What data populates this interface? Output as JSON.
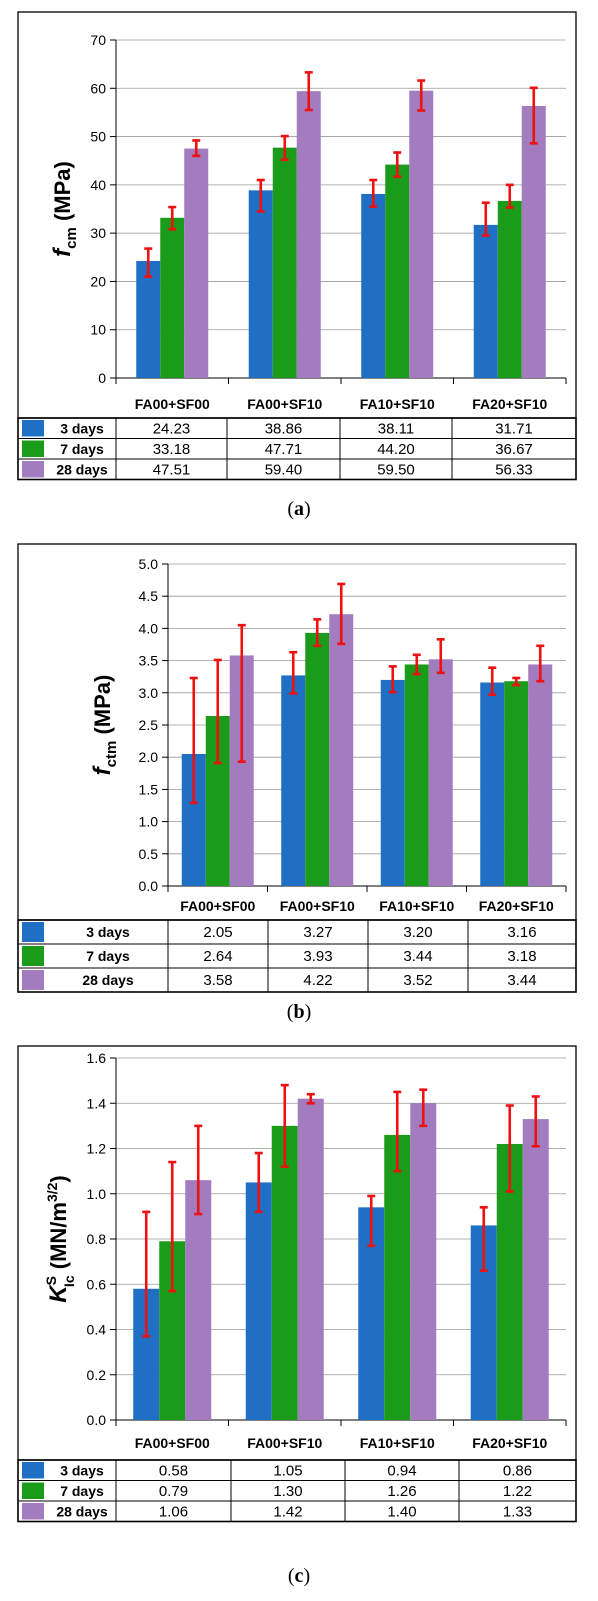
{
  "chart_data": [
    {
      "type": "bar",
      "panel_label": "a",
      "ylabel": {
        "symbol": "f",
        "subscript": "cm",
        "unit": "(MPa)"
      },
      "ylim": [
        0,
        70
      ],
      "yticks": [
        "0",
        "10",
        "20",
        "30",
        "40",
        "50",
        "60",
        "70"
      ],
      "grid": true,
      "categories": [
        "FA00+SF00",
        "FA00+SF10",
        "FA10+SF10",
        "FA20+SF10"
      ],
      "series": [
        {
          "name": "3 days",
          "color": "#1f6fc4",
          "values": [
            24.23,
            38.86,
            38.11,
            31.71
          ],
          "table_values": [
            "24.23",
            "38.86",
            "38.11",
            "31.71"
          ],
          "error_low": [
            21.0,
            34.5,
            35.5,
            29.5
          ],
          "error_high": [
            26.8,
            41.0,
            41.0,
            36.3
          ]
        },
        {
          "name": "7 days",
          "color": "#1a9b1a",
          "values": [
            33.18,
            47.71,
            44.2,
            36.67
          ],
          "table_values": [
            "33.18",
            "47.71",
            "44.20",
            "36.67"
          ],
          "error_low": [
            30.8,
            45.2,
            41.7,
            35.3
          ],
          "error_high": [
            35.4,
            50.1,
            46.7,
            40.0
          ]
        },
        {
          "name": "28 days",
          "color": "#a37bbf",
          "values": [
            47.51,
            59.4,
            59.5,
            56.33
          ],
          "table_values": [
            "47.51",
            "59.40",
            "59.50",
            "56.33"
          ],
          "error_low": [
            46.0,
            55.5,
            55.4,
            48.6
          ],
          "error_high": [
            49.2,
            63.3,
            61.6,
            60.1
          ]
        }
      ]
    },
    {
      "type": "bar",
      "panel_label": "b",
      "ylabel": {
        "symbol": "f",
        "subscript": "ctm",
        "unit": "(MPa)"
      },
      "ylim": [
        0,
        5
      ],
      "yticks": [
        "0.0",
        "0.5",
        "1.0",
        "1.5",
        "2.0",
        "2.5",
        "3.0",
        "3.5",
        "4.0",
        "4.5",
        "5.0"
      ],
      "grid": true,
      "categories": [
        "FA00+SF00",
        "FA00+SF10",
        "FA10+SF10",
        "FA20+SF10"
      ],
      "series": [
        {
          "name": "3 days",
          "color": "#1f6fc4",
          "values": [
            2.05,
            3.27,
            3.2,
            3.16
          ],
          "table_values": [
            "2.05",
            "3.27",
            "3.20",
            "3.16"
          ],
          "error_low": [
            1.29,
            2.99,
            3.01,
            2.97
          ],
          "error_high": [
            3.23,
            3.63,
            3.41,
            3.39
          ]
        },
        {
          "name": "7 days",
          "color": "#1a9b1a",
          "values": [
            2.64,
            3.93,
            3.44,
            3.18
          ],
          "table_values": [
            "2.64",
            "3.93",
            "3.44",
            "3.18"
          ],
          "error_low": [
            1.91,
            3.73,
            3.29,
            3.12
          ],
          "error_high": [
            3.51,
            4.14,
            3.59,
            3.23
          ]
        },
        {
          "name": "28 days",
          "color": "#a37bbf",
          "values": [
            3.58,
            4.22,
            3.52,
            3.44
          ],
          "table_values": [
            "3.58",
            "4.22",
            "3.52",
            "3.44"
          ],
          "error_low": [
            1.93,
            3.76,
            3.31,
            3.18
          ],
          "error_high": [
            4.05,
            4.69,
            3.83,
            3.73
          ]
        }
      ]
    },
    {
      "type": "bar",
      "panel_label": "c",
      "ylabel": {
        "symbol": "K",
        "sup": "S",
        "subscript": "Ic",
        "unit_pre": "(MN/m",
        "unit_sup": "3/2",
        "unit_post": ")"
      },
      "ylim": [
        0,
        1.6
      ],
      "yticks": [
        "0.0",
        "0.2",
        "0.4",
        "0.6",
        "0.8",
        "1.0",
        "1.2",
        "1.4",
        "1.6"
      ],
      "grid": true,
      "categories": [
        "FA00+SF00",
        "FA00+SF10",
        "FA10+SF10",
        "FA20+SF10"
      ],
      "series": [
        {
          "name": "3 days",
          "color": "#1f6fc4",
          "values": [
            0.58,
            1.05,
            0.94,
            0.86
          ],
          "table_values": [
            "0.58",
            "1.05",
            "0.94",
            "0.86"
          ],
          "error_low": [
            0.37,
            0.92,
            0.77,
            0.66
          ],
          "error_high": [
            0.92,
            1.18,
            0.99,
            0.94
          ]
        },
        {
          "name": "7 days",
          "color": "#1a9b1a",
          "values": [
            0.79,
            1.3,
            1.26,
            1.22
          ],
          "table_values": [
            "0.79",
            "1.30",
            "1.26",
            "1.22"
          ],
          "error_low": [
            0.57,
            1.12,
            1.1,
            1.01
          ],
          "error_high": [
            1.14,
            1.48,
            1.45,
            1.39
          ]
        },
        {
          "name": "28 days",
          "color": "#a37bbf",
          "values": [
            1.06,
            1.42,
            1.4,
            1.33
          ],
          "table_values": [
            "1.06",
            "1.42",
            "1.40",
            "1.33"
          ],
          "error_low": [
            0.91,
            1.4,
            1.3,
            1.21
          ],
          "error_high": [
            1.3,
            1.44,
            1.46,
            1.43
          ]
        }
      ]
    }
  ]
}
